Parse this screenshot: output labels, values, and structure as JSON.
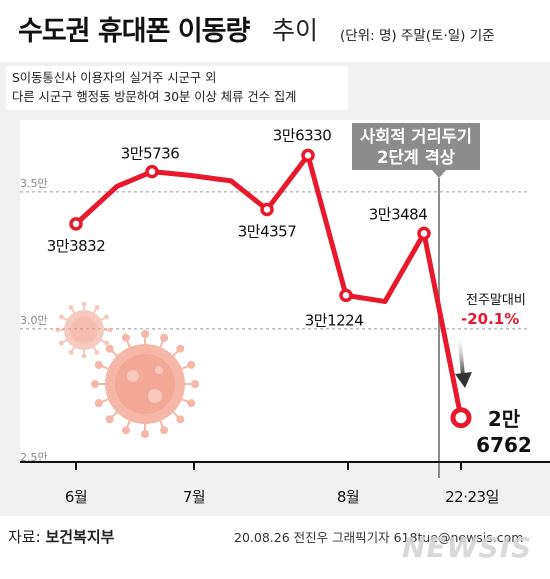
{
  "header": {
    "title": "수도권 휴대폰 이동량",
    "title_suffix": "추이",
    "unit_note": "(단위: 명) 주말(토·일) 기준"
  },
  "note": {
    "line1": "S이동통신사 이용자의 실거주 시군구 외",
    "line2": "다른 시군구 행정동 방문하여 30분 이상 체류 건수 집계"
  },
  "colors": {
    "line": "#e8192c",
    "band": "#ffffff",
    "background": "#f1f1f1",
    "callout": "#8c8c8c"
  },
  "icons": [
    "virus-icon",
    "arrow-down-icon"
  ],
  "chart_data": {
    "type": "line",
    "unit": "명",
    "ylim": [
      25000,
      37000
    ],
    "y_ticks": [
      25000,
      30000,
      35000
    ],
    "y_tick_labels": [
      "2.5만",
      "3.0만",
      "3.5만"
    ],
    "x_month_labels": [
      "6월",
      "7월",
      "8월",
      "22·23일"
    ],
    "grid": "dashed horizontal",
    "series": [
      {
        "values": [
          33832,
          35200,
          35736,
          35600,
          35400,
          34357,
          36330,
          31224,
          31000,
          33484,
          26762
        ],
        "labels": [
          "3만3832",
          "",
          "3만5736",
          "",
          "",
          "3만4357",
          "3만6330",
          "3만1224",
          "",
          "3만3484",
          "2만 6762"
        ]
      }
    ],
    "annotations": {
      "callout_line1": "사회적 거리두기",
      "callout_line2": "2단계 격상",
      "change_label": "전주말대비",
      "change_value": "-20.1%"
    }
  },
  "footer": {
    "source_label": "자료:",
    "source_name": "보건복지부",
    "credit": "20.08.26 전진우 그래픽기자 618tue@newsis.com",
    "watermark": "NEWSIS"
  }
}
